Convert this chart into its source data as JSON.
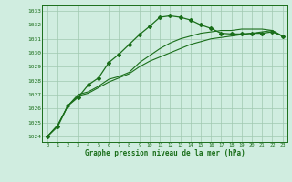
{
  "hours": [
    0,
    1,
    2,
    3,
    4,
    5,
    6,
    7,
    8,
    9,
    10,
    11,
    12,
    13,
    14,
    15,
    16,
    17,
    18,
    19,
    20,
    21,
    22,
    23
  ],
  "line1": [
    1024.0,
    1024.8,
    1026.2,
    1026.9,
    1027.1,
    1027.5,
    1027.9,
    1028.2,
    1028.5,
    1029.0,
    1029.4,
    1029.7,
    1030.0,
    1030.3,
    1030.6,
    1030.8,
    1031.0,
    1031.1,
    1031.2,
    1031.3,
    1031.4,
    1031.5,
    1031.6,
    1031.2
  ],
  "line2": [
    1024.0,
    1024.8,
    1026.2,
    1027.0,
    1027.2,
    1027.6,
    1028.1,
    1028.3,
    1028.6,
    1029.3,
    1029.8,
    1030.3,
    1030.7,
    1031.0,
    1031.2,
    1031.4,
    1031.5,
    1031.6,
    1031.6,
    1031.7,
    1031.7,
    1031.7,
    1031.6,
    1031.2
  ],
  "line_marked": [
    1024.0,
    1024.7,
    1026.2,
    1026.8,
    1027.7,
    1028.2,
    1029.3,
    1029.9,
    1030.6,
    1031.3,
    1031.9,
    1032.55,
    1032.65,
    1032.55,
    1032.35,
    1032.0,
    1031.75,
    1031.4,
    1031.35,
    1031.35,
    1031.4,
    1031.4,
    1031.5,
    1031.2
  ],
  "line_color": "#1a6e1a",
  "bg_color": "#d0ede0",
  "grid_color": "#a0c8b0",
  "ylabel_ticks": [
    1024,
    1025,
    1026,
    1027,
    1028,
    1029,
    1030,
    1031,
    1032,
    1033
  ],
  "xlabel": "Graphe pression niveau de la mer (hPa)",
  "ylim": [
    1023.6,
    1033.4
  ],
  "xlim": [
    -0.5,
    23.5
  ]
}
